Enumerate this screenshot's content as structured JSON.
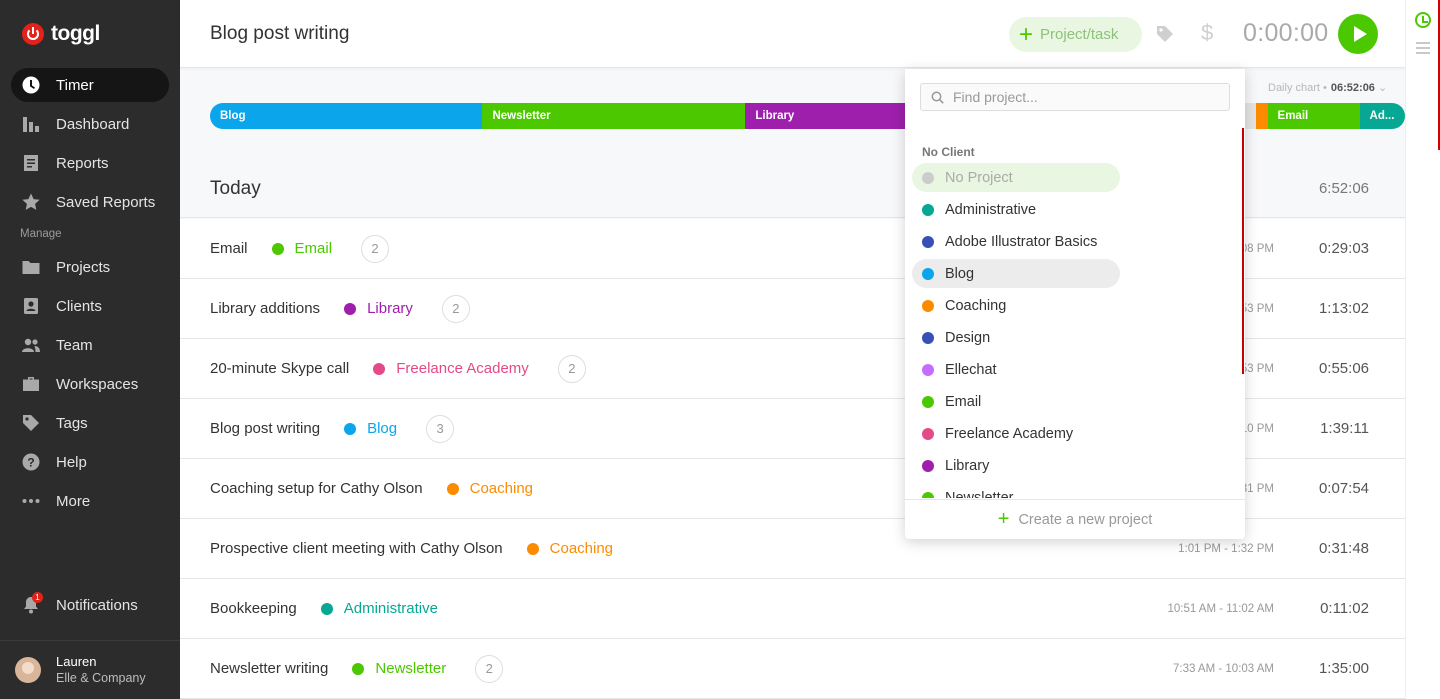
{
  "sidebar": {
    "logo": "toggl",
    "items": [
      {
        "label": "Timer",
        "icon": "clock-icon"
      },
      {
        "label": "Dashboard",
        "icon": "bar-chart-icon"
      },
      {
        "label": "Reports",
        "icon": "report-icon"
      },
      {
        "label": "Saved Reports",
        "icon": "star-icon"
      }
    ],
    "manage_heading": "Manage",
    "manage_items": [
      {
        "label": "Projects",
        "icon": "folder-icon"
      },
      {
        "label": "Clients",
        "icon": "client-icon"
      },
      {
        "label": "Team",
        "icon": "team-icon"
      },
      {
        "label": "Workspaces",
        "icon": "briefcase-icon"
      },
      {
        "label": "Tags",
        "icon": "tag-icon"
      },
      {
        "label": "Help",
        "icon": "help-icon"
      },
      {
        "label": "More",
        "icon": "more-icon"
      }
    ],
    "notifications": {
      "label": "Notifications",
      "count": "1"
    },
    "user": {
      "name": "Lauren",
      "workspace": "Elle & Company"
    }
  },
  "topbar": {
    "description": "Blog post writing",
    "project_button": "Project/task",
    "timer": "0:00:00"
  },
  "daily_chart": {
    "label": "Daily chart",
    "total": "06:52:06",
    "segments": [
      {
        "label": "Blog",
        "color": "#0ba5ec",
        "share": 0.228
      },
      {
        "label": "Newsletter",
        "color": "#4bc800",
        "share": 0.22
      },
      {
        "label": "Library",
        "color": "#9e1fab",
        "share": 0.143
      },
      {
        "label": "",
        "color": "#e4e4e4",
        "share": 0.284
      },
      {
        "label": "",
        "color": "#fd8b00",
        "share": 0.01
      },
      {
        "label": "Email",
        "color": "#4bc800",
        "share": 0.077
      },
      {
        "label": "Ad...",
        "color": "#06a893",
        "share": 0.038
      }
    ]
  },
  "day": {
    "title": "Today",
    "total": "6:52:06",
    "entries": [
      {
        "description": "Email",
        "project": "Email",
        "color": "#4bc800",
        "count": "2",
        "range": "08 PM",
        "duration": "0:29:03"
      },
      {
        "description": "Library additions",
        "project": "Library",
        "color": "#9e1fab",
        "count": "2",
        "range": "53 PM",
        "duration": "1:13:02"
      },
      {
        "description": "20-minute Skype call",
        "project": "Freelance Academy",
        "color": "#e44a87",
        "count": "2",
        "range": "53 PM",
        "duration": "0:55:06"
      },
      {
        "description": "Blog post writing",
        "project": "Blog",
        "color": "#0ba5ec",
        "count": "3",
        "range": "10 PM",
        "duration": "1:39:11"
      },
      {
        "description": "Coaching setup for Cathy Olson",
        "project": "Coaching",
        "color": "#fd8b00",
        "count": "",
        "range": "31 PM",
        "duration": "0:07:54"
      },
      {
        "description": "Prospective client meeting with Cathy Olson",
        "project": "Coaching",
        "color": "#fd8b00",
        "count": "",
        "range": "1:01 PM - 1:32 PM",
        "duration": "0:31:48"
      },
      {
        "description": "Bookkeeping",
        "project": "Administrative",
        "color": "#06a893",
        "count": "",
        "range": "10:51 AM - 11:02 AM",
        "duration": "0:11:02"
      },
      {
        "description": "Newsletter writing",
        "project": "Newsletter",
        "color": "#4bc800",
        "count": "2",
        "range": "7:33 AM - 10:03 AM",
        "duration": "1:35:00"
      }
    ]
  },
  "project_dropdown": {
    "search_placeholder": "Find project...",
    "section": "No Client",
    "items": [
      {
        "label": "No Project",
        "color": "#cccccc"
      },
      {
        "label": "Administrative",
        "color": "#06a893"
      },
      {
        "label": "Adobe Illustrator Basics",
        "color": "#3750b5"
      },
      {
        "label": "Blog",
        "color": "#0ba5ec"
      },
      {
        "label": "Coaching",
        "color": "#fd8b00"
      },
      {
        "label": "Design",
        "color": "#3750b5"
      },
      {
        "label": "Ellechat",
        "color": "#c56bff"
      },
      {
        "label": "Email",
        "color": "#4bc800"
      },
      {
        "label": "Freelance Academy",
        "color": "#e44a87"
      },
      {
        "label": "Library",
        "color": "#9e1fab"
      },
      {
        "label": "Newsletter",
        "color": "#4bc800"
      }
    ],
    "create_label": "Create a new project"
  }
}
